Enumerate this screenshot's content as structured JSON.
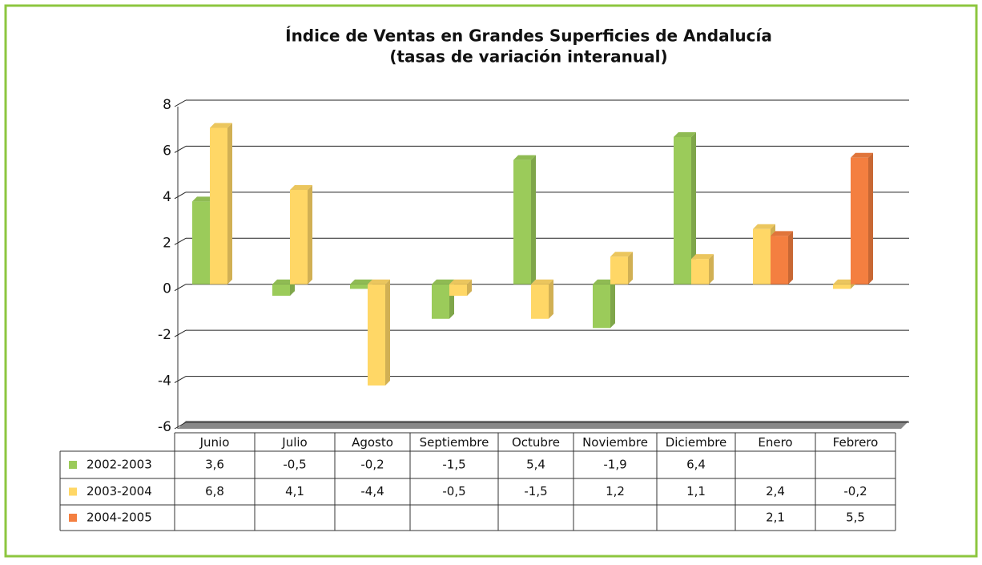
{
  "chart_data": {
    "type": "bar",
    "title": "Índice de Ventas en Grandes Superficies de Andalucía",
    "subtitle": "(tasas de variación interanual)",
    "categories": [
      "Junio",
      "Julio",
      "Agosto",
      "Septiembre",
      "Octubre",
      "Noviembre",
      "Diciembre",
      "Enero",
      "Febrero"
    ],
    "series": [
      {
        "name": "2002-2003",
        "color": "#9bcb5a",
        "values": [
          3.6,
          -0.5,
          -0.2,
          -1.5,
          5.4,
          -1.9,
          6.4,
          null,
          null
        ],
        "value_labels": [
          "3,6",
          "-0,5",
          "-0,2",
          "-1,5",
          "5,4",
          "-1,9",
          "6,4",
          null,
          null
        ]
      },
      {
        "name": "2003-2004",
        "color": "#ffd766",
        "values": [
          6.8,
          4.1,
          -4.4,
          -0.5,
          -1.5,
          1.2,
          1.1,
          2.4,
          -0.2
        ],
        "value_labels": [
          "6,8",
          "4,1",
          "-4,4",
          "-0,5",
          "-1,5",
          "1,2",
          "1,1",
          "2,4",
          "-0,2"
        ]
      },
      {
        "name": "2004-2005",
        "color": "#f47f40",
        "values": [
          null,
          null,
          null,
          null,
          null,
          null,
          null,
          2.1,
          5.5
        ],
        "value_labels": [
          null,
          null,
          null,
          null,
          null,
          null,
          null,
          "2,1",
          "5,5"
        ]
      }
    ],
    "ylim": [
      -6,
      8
    ],
    "yticks": [
      -6,
      -4,
      -2,
      0,
      2,
      4,
      6,
      8
    ],
    "grid": true
  }
}
